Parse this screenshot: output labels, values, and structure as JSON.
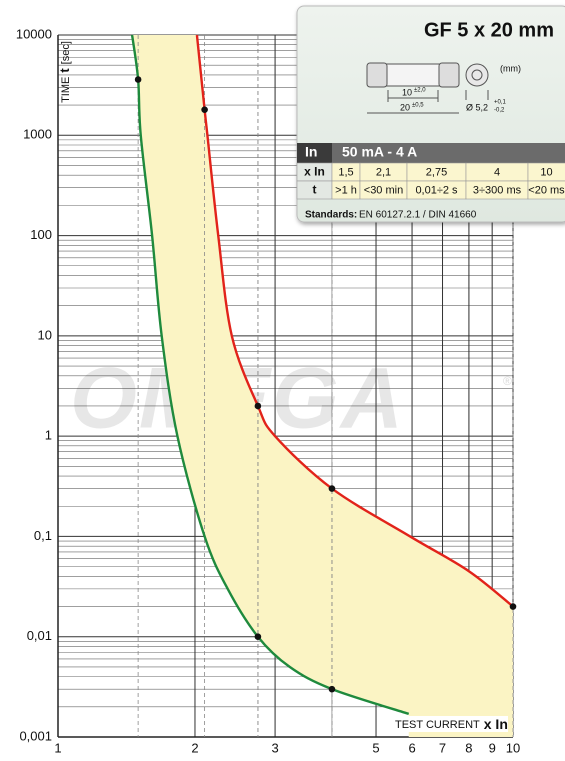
{
  "chart_data": {
    "type": "line",
    "y_label": {
      "text": "TIME",
      "var": "t",
      "unit": "[sec]"
    },
    "x_label": {
      "text": "TEST CURRENT",
      "var": "x In"
    },
    "watermark": "OMEGA",
    "watermark_mark": "®",
    "xscale": "log",
    "yscale": "log",
    "grid": true,
    "xlim": [
      1,
      10
    ],
    "ylim": [
      0.001,
      10000
    ],
    "xticks": [
      1,
      2,
      3,
      5,
      6,
      7,
      8,
      9,
      10
    ],
    "yticks": [
      10000,
      1000,
      100,
      10,
      1,
      {
        "value": 0.1,
        "label": "0,1"
      },
      {
        "value": 0.01,
        "label": "0,01"
      },
      {
        "value": 0.001,
        "label": "0,001"
      }
    ],
    "fill_color": "#fbf4c4",
    "series": [
      {
        "color": "#1f8a3d",
        "x": [
          1.455,
          1.5,
          1.52,
          1.61,
          1.69,
          1.83,
          2.1,
          2.36,
          2.75,
          3.23,
          4,
          5.9
        ],
        "values": [
          10000,
          3600,
          1000,
          100,
          10,
          1,
          0.1,
          0.03,
          0.01,
          0.005,
          0.003,
          0.0017
        ]
      },
      {
        "color": "#e2231a",
        "x": [
          2.02,
          2.1,
          2.13,
          2.25,
          2.41,
          2.75,
          3.0,
          4,
          5.94,
          8,
          10
        ],
        "values": [
          10000,
          1800,
          1000,
          100,
          10,
          2,
          1,
          0.3,
          0.1,
          0.045,
          0.02
        ]
      }
    ],
    "points": {
      "x": [
        1.5,
        2.1,
        2.75,
        2.75,
        4,
        4,
        10
      ],
      "values": [
        3600,
        1800,
        2,
        0.01,
        0.3,
        0.003,
        0.02
      ]
    }
  },
  "panel": {
    "title": "GF 5 x 20 mm",
    "dims": {
      "unit": "(mm)",
      "inner": "10",
      "inner_tol": "±2,0",
      "length": "20",
      "length_tol": "±0,5",
      "diameter": "Ø 5,2",
      "tol_plus": "+0,1",
      "tol_minus": "-0,2"
    },
    "table": {
      "header": [
        "In",
        "50 mA - 4 A"
      ],
      "rows": [
        [
          "x In",
          "1,5",
          "2,1",
          "2,75",
          "4",
          "10"
        ],
        [
          "t",
          ">1 h",
          "<30 min",
          "0,01÷2 s",
          "3÷300 ms",
          "<20 ms"
        ]
      ]
    },
    "standards_label": "Standards:",
    "standards": "EN 60127.2.1 / DIN 41660"
  }
}
